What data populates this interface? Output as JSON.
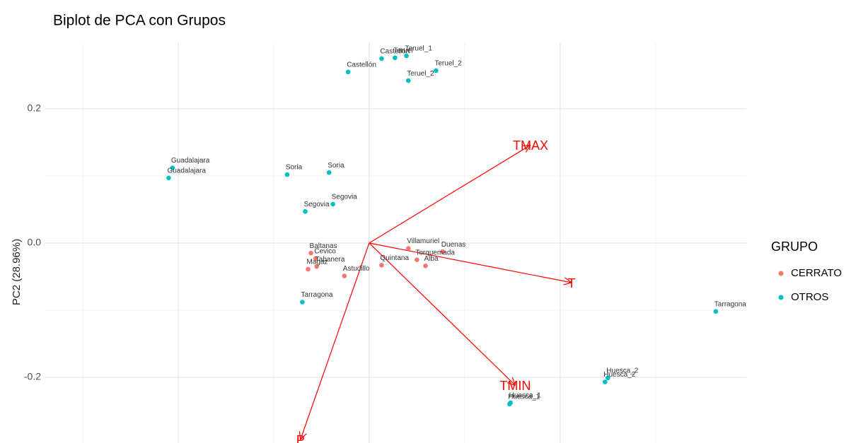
{
  "chart_data": {
    "type": "biplot",
    "title": "Biplot de PCA con Grupos",
    "y_label": "PC2 (28.96%)",
    "legend_title": "GRUPO",
    "xlim": [
      -0.34,
      0.395
    ],
    "ylim": [
      -0.298,
      0.299
    ],
    "xticks": [
      -0.2,
      0,
      0.2
    ],
    "yticks": [
      -0.2,
      {
        "value": 0,
        "label": "0.0"
      },
      0.2
    ],
    "grid": true,
    "series": [
      {
        "name": "CERRATO",
        "color": "#f8766d",
        "labels": [
          "Baltanas",
          "Cevico",
          "Tabanera",
          "Magaz",
          "Astudillo",
          "Quintana",
          "Villamuriel",
          "Duenas",
          "Torquemada",
          "Alba"
        ],
        "x": [
          -0.061,
          -0.056,
          -0.055,
          -0.064,
          -0.026,
          0.013,
          0.041,
          0.077,
          0.05,
          0.059
        ],
        "values": [
          -0.015,
          -0.023,
          -0.035,
          -0.039,
          -0.049,
          -0.033,
          -0.008,
          -0.013,
          -0.025,
          -0.034
        ]
      },
      {
        "name": "OTROS",
        "color": "#00bfc4",
        "labels": [
          "Castellón",
          "Castellón",
          "Teruel",
          "Teruel_1",
          "Teruel_2",
          "Teruel_2",
          "Guadalajara",
          "Guadalajara",
          "Soria",
          "Soria",
          "Segovia",
          "Segovia",
          "Tarragona",
          "Tarragona",
          "Huesca_2",
          "Huesca_2",
          "Huesca_1",
          "Huesca_1"
        ],
        "x": [
          -0.022,
          0.013,
          0.027,
          0.039,
          0.07,
          0.041,
          -0.206,
          -0.21,
          -0.086,
          -0.042,
          -0.038,
          -0.067,
          -0.07,
          0.363,
          0.25,
          0.247,
          0.147,
          0.148
        ],
        "values": [
          0.255,
          0.275,
          0.276,
          0.279,
          0.257,
          0.242,
          0.112,
          0.097,
          0.102,
          0.105,
          0.058,
          0.047,
          -0.088,
          -0.102,
          -0.201,
          -0.207,
          -0.24,
          -0.238
        ]
      }
    ],
    "loadings": [
      {
        "name": "TMAX",
        "x": 0.169,
        "y": 0.146
      },
      {
        "name": "T",
        "x": 0.212,
        "y": -0.059
      },
      {
        "name": "TMIN",
        "x": 0.153,
        "y": -0.212
      },
      {
        "name": "P",
        "x": -0.072,
        "y": -0.293
      }
    ],
    "loading_color": "#ff0000"
  }
}
